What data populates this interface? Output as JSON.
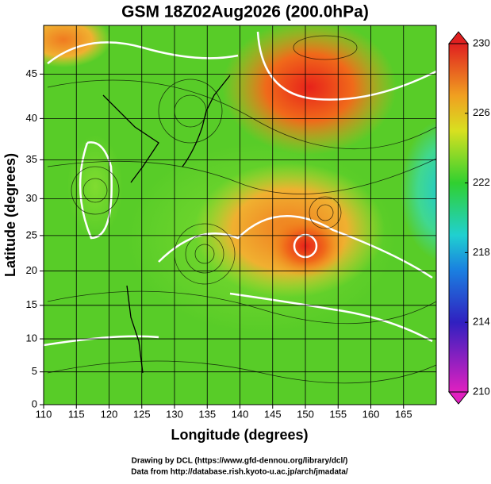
{
  "chart_data": {
    "type": "streamline",
    "title": "GSM 18Z02Aug2026 (200.0hPa)",
    "x_label": "Longitude (degrees)",
    "y_label": "Latitude  (degrees)",
    "xlim": [
      110,
      170
    ],
    "ylim": [
      0,
      50
    ],
    "xticks": [
      110,
      115,
      120,
      125,
      130,
      135,
      140,
      145,
      150,
      155,
      160,
      165
    ],
    "yticks": [
      0,
      5,
      10,
      15,
      20,
      25,
      30,
      35,
      40,
      45
    ],
    "grid": true,
    "projection": "mercator",
    "colorbar": {
      "lim": [
        210,
        230
      ],
      "ticks": [
        210,
        214,
        218,
        222,
        226,
        230
      ]
    },
    "credits": [
      "Drawing by DCL (https://www.gfd-dennou.org/library/dcl/)",
      "Data from http://database.rish.kyoto-u.ac.jp/arch/jmadata/"
    ]
  }
}
